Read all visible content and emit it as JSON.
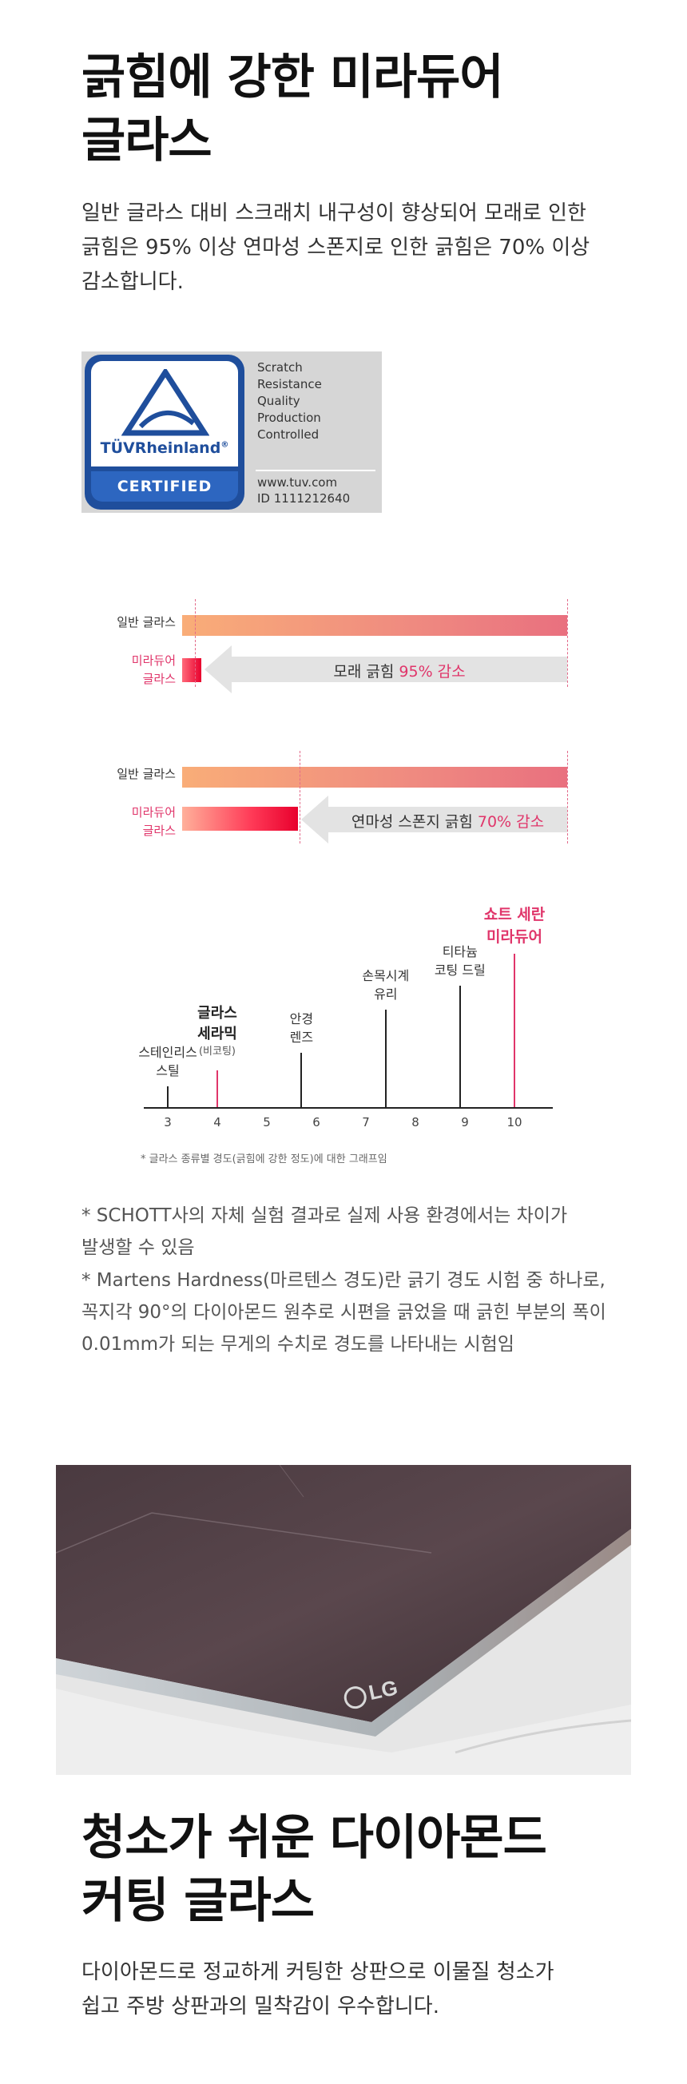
{
  "section1": {
    "title_line1": "긁힘에 강한 미라듀어",
    "title_line2": "글라스",
    "desc_line1": "일반 글라스 대비 스크래치 내구성이 향상되어 모래로 인한",
    "desc_line2": "긁힘은 95% 이상 연마성 스폰지로 인한 긁힘은 70% 이상",
    "desc_line3": "감소합니다."
  },
  "certificate": {
    "brand": "TÜVRheinland",
    "registered": "®",
    "badge": "CERTIFIED",
    "lines": [
      "Scratch",
      "Resistance",
      "Quality",
      "Production",
      "Controlled"
    ],
    "url": "www.tuv.com",
    "id_line": "ID  1111212640"
  },
  "comparison": {
    "sand": {
      "normal_label": "일반 글라스",
      "miradur_label_1": "미라듀어",
      "miradur_label_2": "글라스",
      "reduction_text": "모래 긁힘",
      "reduction_value": "95% 감소",
      "miradur_fraction": 0.05
    },
    "sponge": {
      "normal_label": "일반 글라스",
      "miradur_label_1": "미라듀어",
      "miradur_label_2": "글라스",
      "reduction_text": "연마성 스폰지 긁힘",
      "reduction_value": "70% 감소",
      "miradur_fraction": 0.3
    }
  },
  "hardness_chart": {
    "ticks": [
      "3",
      "4",
      "5",
      "6",
      "7",
      "8",
      "9",
      "10"
    ],
    "materials": [
      {
        "line1": "스테인리스",
        "line2": "스틸",
        "value": 3.0
      },
      {
        "line1": "글라스",
        "line2": "세라믹",
        "line3": "(비코팅)",
        "value": 4.0
      },
      {
        "line1": "안경",
        "line2": "렌즈",
        "value": 5.7
      },
      {
        "line1": "손목시계",
        "line2": "유리",
        "value": 7.4
      },
      {
        "line1": "티타늄",
        "line2": "코팅 드릴",
        "value": 8.9
      },
      {
        "line1": "쇼트 세란",
        "line2": "미라듀어",
        "value": 10.0
      }
    ],
    "caption": "* 글라스 종류별 경도(긁힘에 강한 정도)에 대한 그래프임"
  },
  "notes": {
    "n1_line1": "* SCHOTT사의 자체 실험 결과로 실제 사용 환경에서는 차이가",
    "n1_line2": "발생할 수 있음",
    "n2_line1": "* Martens Hardness(마르텐스 경도)란 긁기 경도 시험 중 하나로,",
    "n2_line2": "꼭지각 90°의 다이아몬드 원추로 시편을 긁었을 때 긁힌 부분의 폭이",
    "n2_line3": "0.01mm가 되는 무게의 수치로 경도를 나타내는 시험임"
  },
  "photo": {
    "logo": "LG"
  },
  "section2": {
    "title_line1": "청소가 쉬운 다이아몬드",
    "title_line2": "커팅 글라스",
    "desc_line1": "다이아몬드로 정교하게 커팅한 상판으로 이물질 청소가",
    "desc_line2": "쉽고 주방 상판과의 밀착감이 우수합니다."
  },
  "colors": {
    "accent_pink": "#e0356a",
    "bar_start": "#f9ad78",
    "bar_end": "#e9707f",
    "tuv_blue": "#1f4e9c"
  }
}
